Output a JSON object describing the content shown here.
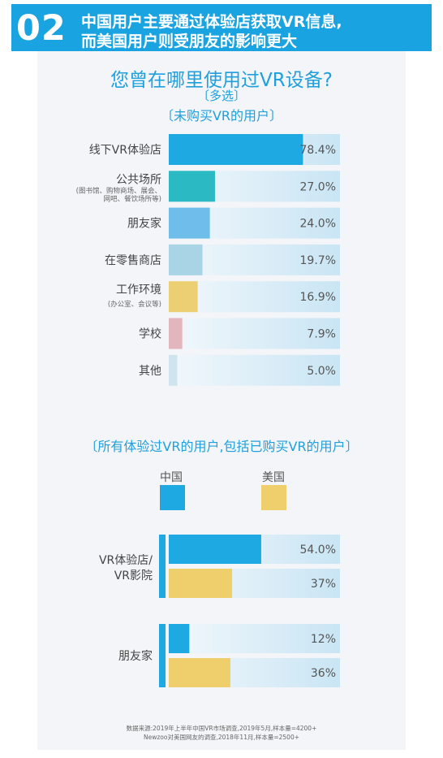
{
  "header": {
    "number": "02",
    "line1": "中国用户主要通过体验店获取VR信息,",
    "line2": "而美国用户则受朋友的影响更大"
  },
  "questions": {
    "title": "您曾在哪里使用过VR设备?",
    "multi_select": "〔多选〕",
    "group1": "〔未购买VR的用户〕",
    "group2": "〔所有体验过VR的用户,包括已购买VR的用户〕"
  },
  "legend": {
    "china": "中国",
    "usa": "美国"
  },
  "source": {
    "line1": "数据来源:2019年上半年中国VR市场调查,2019年5月,样本量=4200+",
    "line2": "Newzoo对美国网友的调查,2018年11月,样本量=2500+"
  },
  "colors": {
    "header": "#19a3e0",
    "accent_text": "#20a0dc",
    "china": "#1ea9e2",
    "usa": "#efcf6b",
    "track_light": "#f2f8fc",
    "track_blue": "#c9e5f4"
  },
  "chart_data": [
    {
      "type": "bar",
      "orientation": "horizontal",
      "categories": [
        {
          "label": "线下VR体验店",
          "sublabel": ""
        },
        {
          "label": "公共场所",
          "sublabel": "(图书馆、购物商场、展会、网吧、餐饮场所等)"
        },
        {
          "label": "朋友家",
          "sublabel": ""
        },
        {
          "label": "在零售商店",
          "sublabel": ""
        },
        {
          "label": "工作环境",
          "sublabel": "(办公室、会议等)"
        },
        {
          "label": "学校",
          "sublabel": ""
        },
        {
          "label": "其他",
          "sublabel": ""
        }
      ],
      "values": [
        78.4,
        27.0,
        24.0,
        19.7,
        16.9,
        7.9,
        5.0
      ],
      "value_labels": [
        "78.4%",
        "27.0%",
        "24.0%",
        "19.7%",
        "16.9%",
        "7.9%",
        "5.0%"
      ],
      "bar_colors": [
        "#1ea9e2",
        "#2bbac4",
        "#6fbdea",
        "#a8d4e6",
        "#eccf72",
        "#e3b5bd",
        "#cfe4ee"
      ],
      "xlim": [
        0,
        100
      ]
    },
    {
      "type": "bar",
      "orientation": "horizontal",
      "categories": [
        "VR体验店/VR影院",
        "朋友家"
      ],
      "series": [
        {
          "name": "中国",
          "values": [
            54.0,
            12
          ],
          "value_labels": [
            "54.0%",
            "12%"
          ]
        },
        {
          "name": "美国",
          "values": [
            37,
            36
          ],
          "value_labels": [
            "37%",
            "36%"
          ]
        }
      ],
      "xlim": [
        0,
        100
      ]
    }
  ]
}
